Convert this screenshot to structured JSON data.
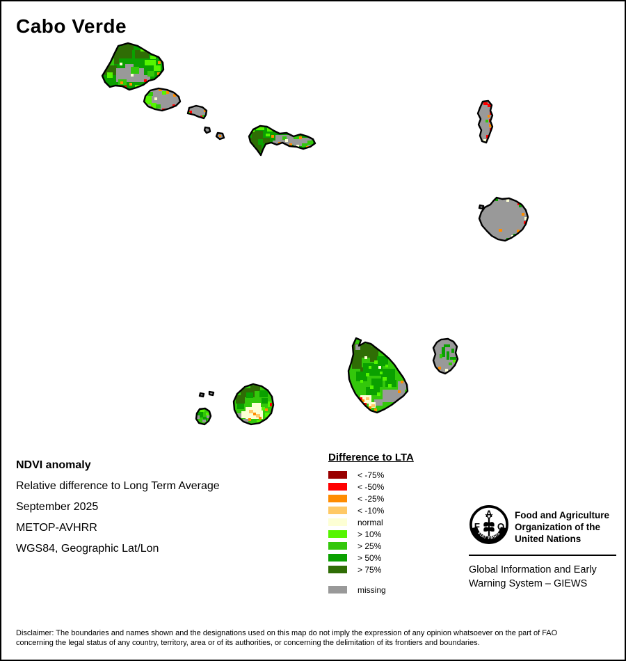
{
  "title": "Cabo Verde",
  "info": {
    "heading": "NDVI anomaly",
    "lines": [
      "Relative difference to Long Term Average",
      "September 2025",
      "METOP-AVHRR",
      "WGS84, Geographic Lat/Lon"
    ]
  },
  "legend": {
    "title": "Difference to LTA",
    "items": [
      {
        "label": "< -75%",
        "color": "#990000"
      },
      {
        "label": "< -50%",
        "color": "#ff0000"
      },
      {
        "label": "< -25%",
        "color": "#ff8c00"
      },
      {
        "label": "< -10%",
        "color": "#ffc966"
      },
      {
        "label": "normal",
        "color": "#fdffd4"
      },
      {
        "label": "> 10%",
        "color": "#55f500"
      },
      {
        "label": "> 25%",
        "color": "#33c70b"
      },
      {
        "label": "> 50%",
        "color": "#0aa000"
      },
      {
        "label": "> 75%",
        "color": "#2f6d05"
      }
    ],
    "missing": {
      "label": "missing",
      "color": "#999999"
    }
  },
  "fao": {
    "org_line1": "Food and Agriculture",
    "org_line2": "Organization of the",
    "org_line3": "United Nations",
    "motto": "FIAT  PANIS",
    "logo_letters": {
      "a": "A",
      "f": "F",
      "o": "O"
    },
    "giews_line1": "Global Information and Early",
    "giews_line2": "Warning System – GIEWS"
  },
  "disclaimer": {
    "line1": "Disclaimer: The boundaries and names shown and the designations used on this map do not imply the expression of any opinion whatsoever on the part of FAO",
    "line2": "concerning the legal status of any country, territory, area or of its authorities, or concerning the delimitation of its frontiers and boundaries."
  }
}
